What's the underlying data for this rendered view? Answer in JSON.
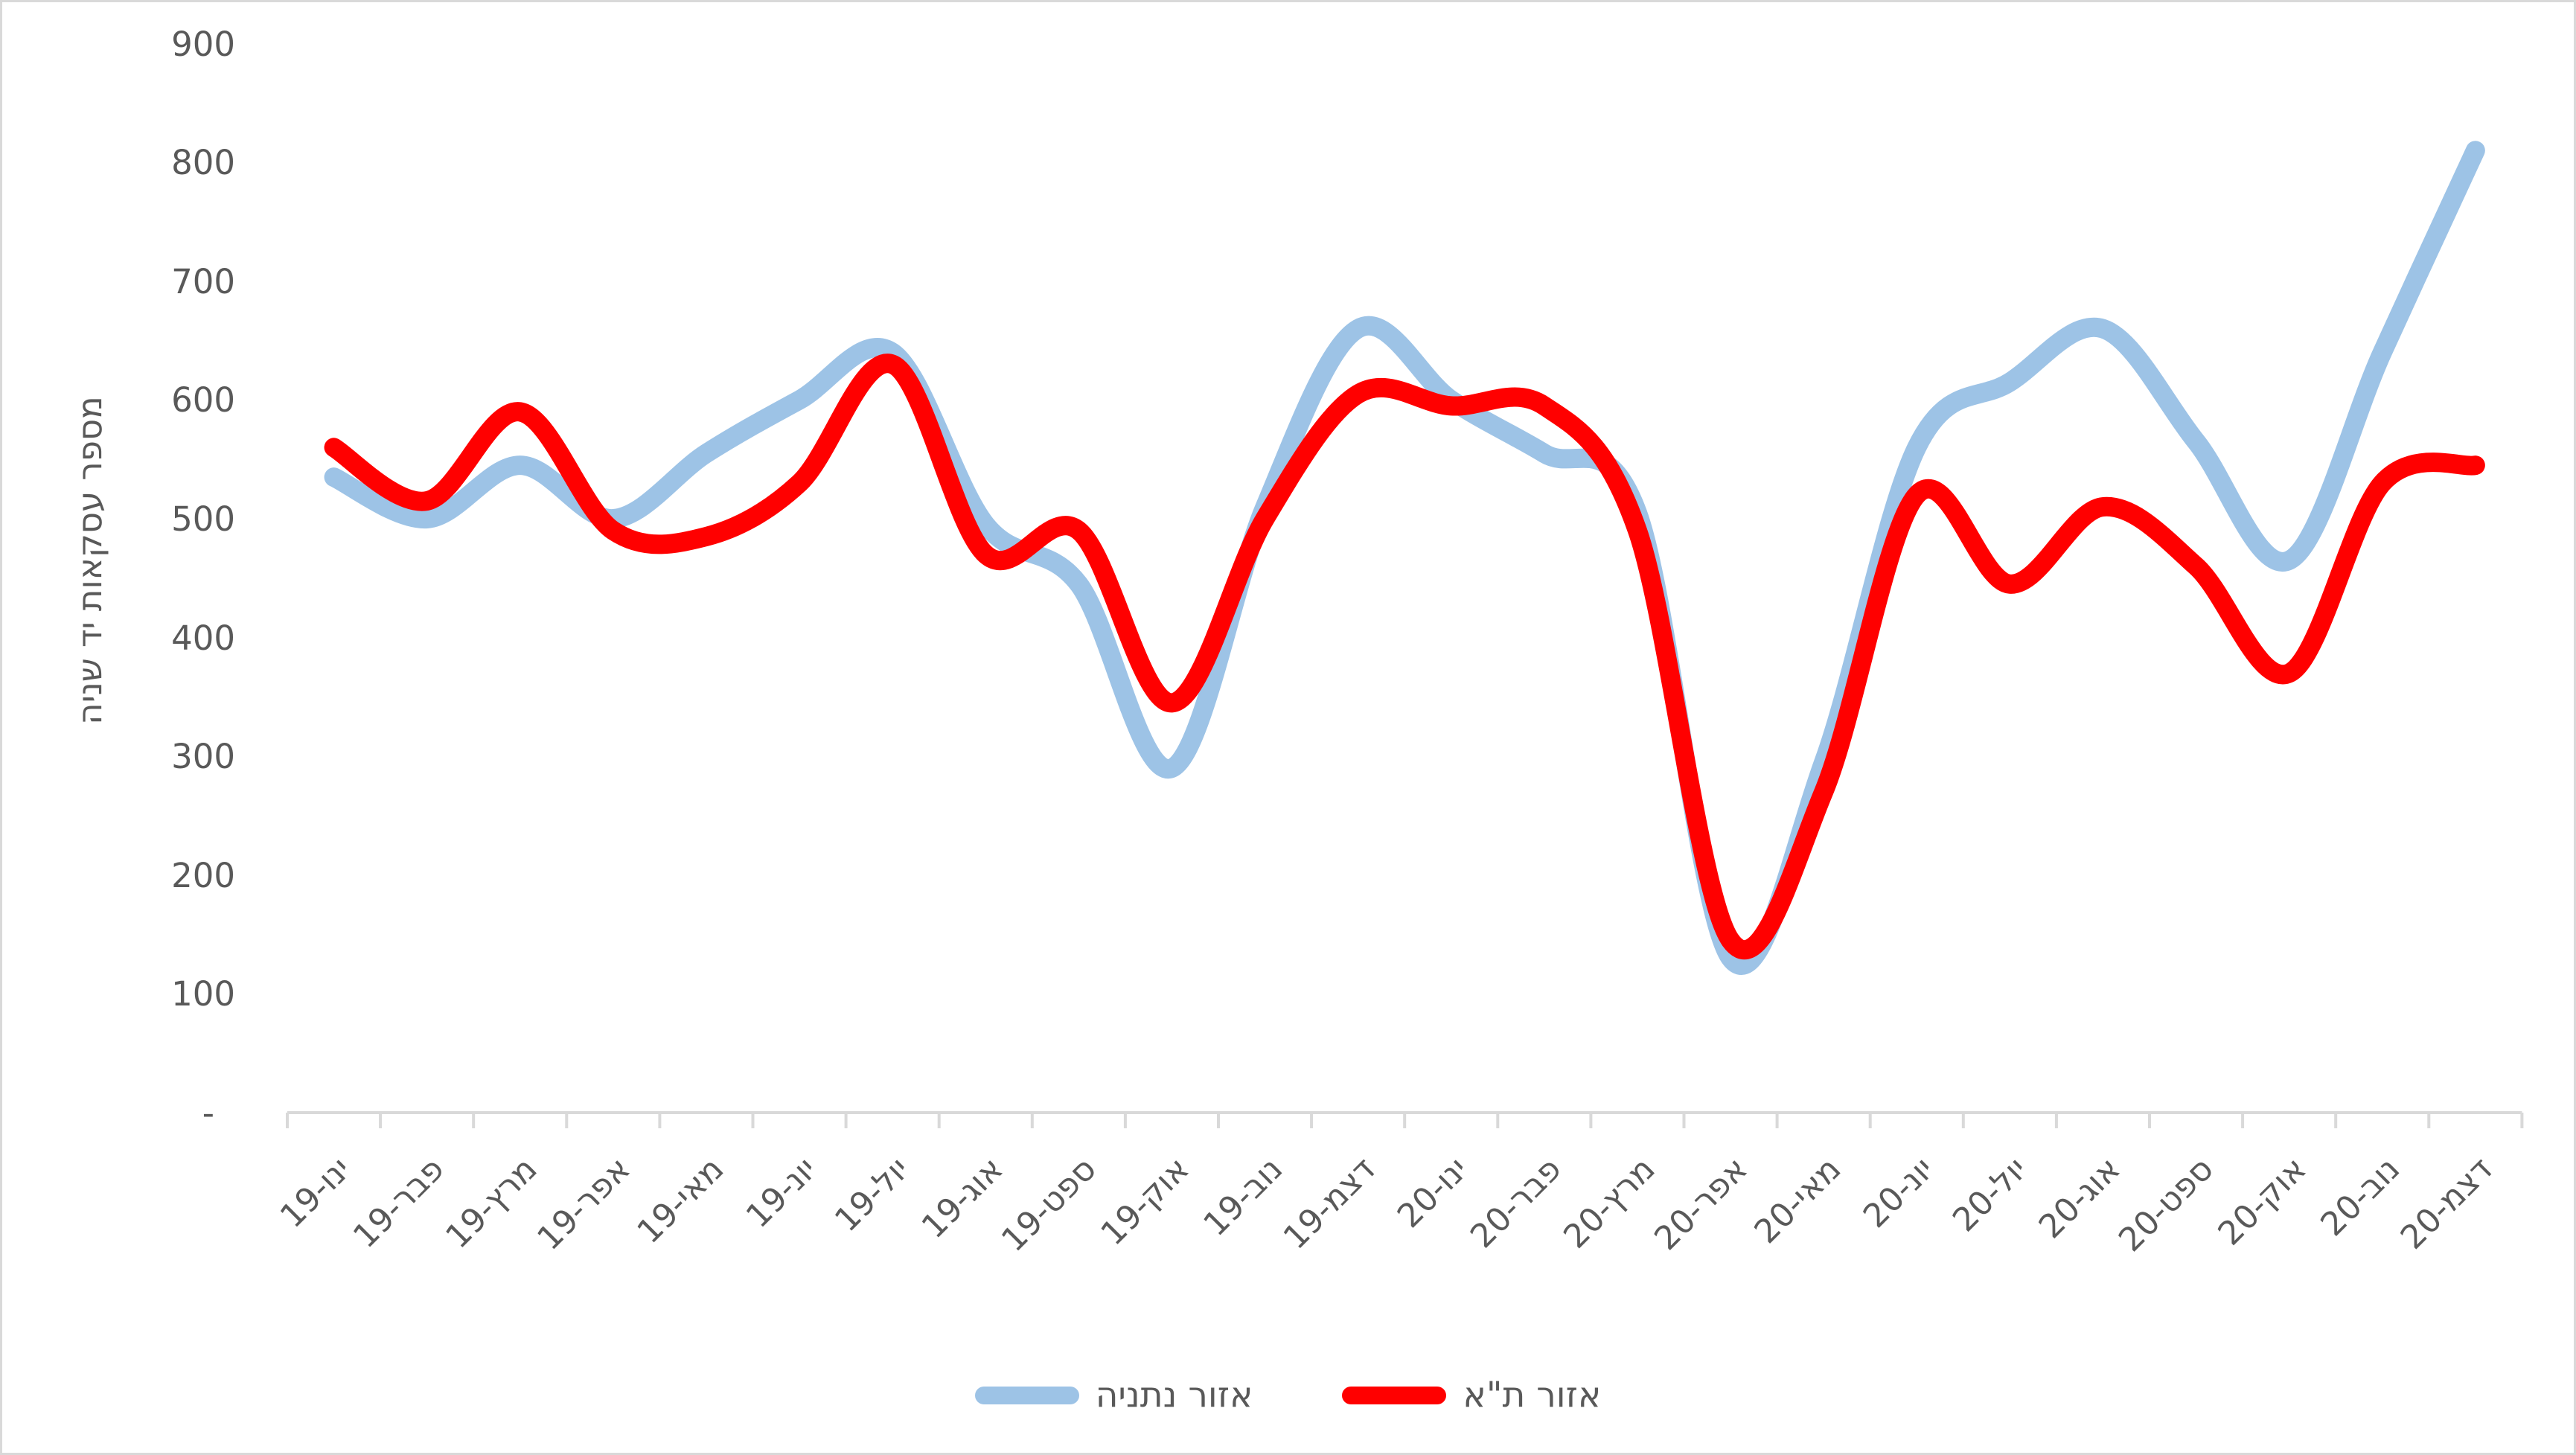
{
  "chart_data": {
    "type": "line",
    "smooth": true,
    "grid": false,
    "categories": [
      "ינו-19",
      "פבר-19",
      "מרץ-19",
      "אפר-19",
      "מאי-19",
      "יונ-19",
      "יול-19",
      "אוג-19",
      "ספט-19",
      "אוק-19",
      "נוב-19",
      "דצמ-19",
      "ינו-20",
      "פבר-20",
      "מרץ-20",
      "אפר-20",
      "מאי-20",
      "יונ-20",
      "יול-20",
      "אוג-20",
      "ספט-20",
      "אוק-20",
      "נוב-20",
      "דצמ-20"
    ],
    "series": [
      {
        "name": "אזור נתניה",
        "color": "#9DC3E6",
        "values": [
          535,
          500,
          545,
          500,
          555,
          600,
          640,
          495,
          445,
          290,
          510,
          660,
          600,
          555,
          505,
          130,
          295,
          560,
          615,
          660,
          565,
          465,
          640,
          810
        ]
      },
      {
        "name": "אזור ת\"א",
        "color": "#FF0000",
        "values": [
          560,
          515,
          590,
          490,
          485,
          530,
          630,
          470,
          490,
          345,
          500,
          605,
          595,
          595,
          490,
          145,
          270,
          520,
          445,
          510,
          460,
          370,
          530,
          545
        ]
      }
    ],
    "ylabel": "מספר עסקאות יד שניה",
    "xlabel": "",
    "ylim": [
      0,
      900
    ],
    "ytick_step": 100,
    "ytick_labels": [
      "900",
      "800",
      "700",
      "600",
      "500",
      "400",
      "300",
      "200",
      "100",
      "-"
    ],
    "zero_tick_label": "-",
    "legend_position": "bottom"
  },
  "legend": {
    "items": [
      {
        "label": "אזור נתניה",
        "color": "#9DC3E6"
      },
      {
        "label": "אזור ת\"א",
        "color": "#FF0000"
      }
    ]
  },
  "colors": {
    "axis_line": "#D9D9D9",
    "tick_mark": "#D9D9D9",
    "text": "#595959",
    "background": "#FFFFFF",
    "series_netanya": "#9DC3E6",
    "series_tel_aviv": "#FF0000"
  }
}
